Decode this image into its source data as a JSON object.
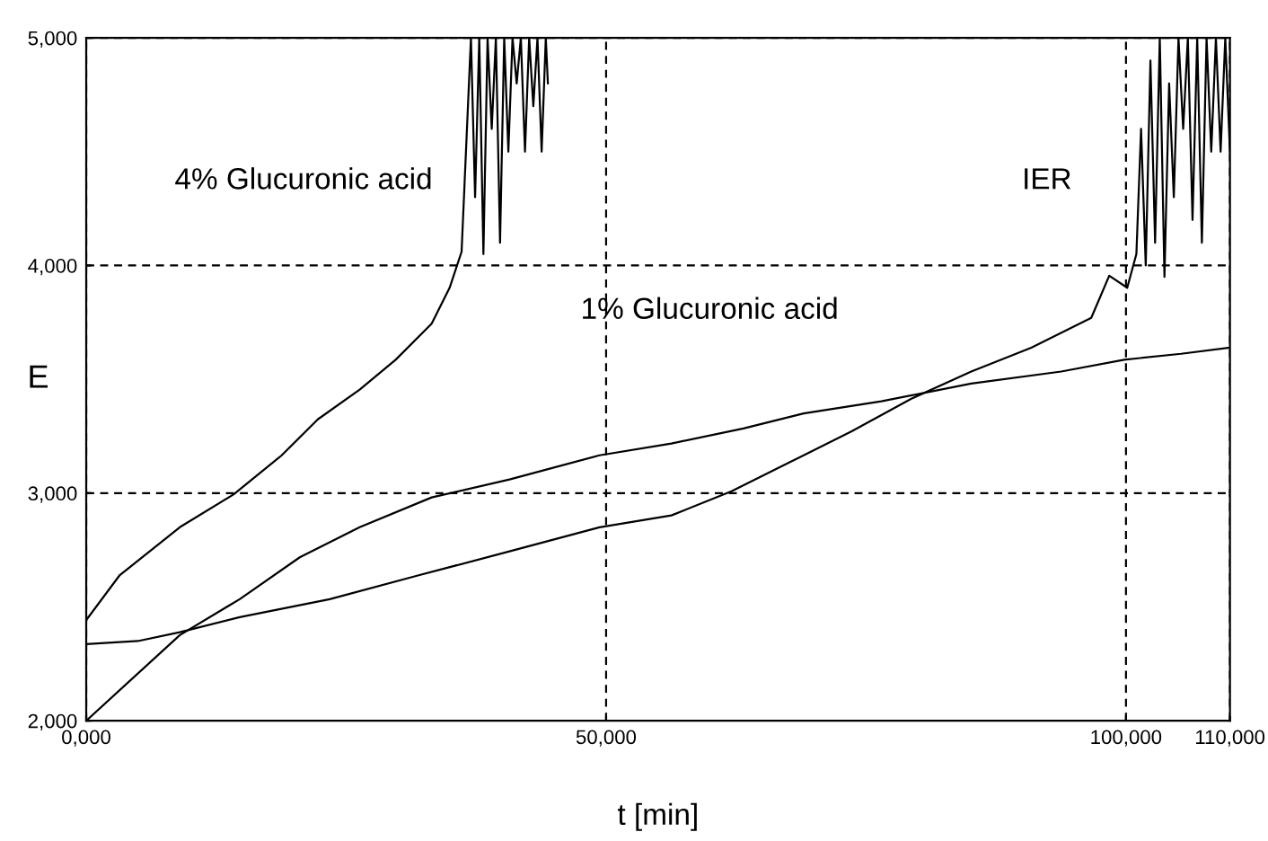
{
  "chart_data": {
    "type": "line",
    "xlabel": "t [min]",
    "ylabel": "E",
    "xlim": [
      0,
      110000
    ],
    "ylim": [
      2000,
      5000
    ],
    "xticks": [
      {
        "value": 0,
        "label": "0,000"
      },
      {
        "value": 50000,
        "label": "50,000"
      },
      {
        "value": 100000,
        "label": "100,000"
      },
      {
        "value": 110000,
        "label": "110,000"
      }
    ],
    "yticks": [
      {
        "value": 2000,
        "label": "2,000"
      },
      {
        "value": 3000,
        "label": "3,000"
      },
      {
        "value": 4000,
        "label": "4,000"
      },
      {
        "value": 5000,
        "label": "5,000"
      }
    ],
    "grid": true,
    "line_style": "solid",
    "marker": "none",
    "series": [
      {
        "color": "#000000",
        "x": [
          0,
          3230,
          9000,
          14190,
          18800,
          22270,
          26300,
          29760,
          33220,
          34950,
          36100,
          37000,
          37400,
          37800,
          38200,
          38600,
          39000,
          39400,
          39800,
          40200,
          40600,
          41000,
          41400,
          41800,
          42200,
          42600,
          43000,
          43400,
          43800,
          44200,
          44400
        ],
        "values": [
          2442,
          2640,
          2850,
          2995,
          3166,
          3324,
          3455,
          3586,
          3744,
          3902,
          4060,
          5000,
          4300,
          5000,
          4050,
          5000,
          4600,
          5000,
          4100,
          5000,
          4500,
          5000,
          4800,
          5000,
          4500,
          5000,
          4700,
          5000,
          4500,
          5000,
          4800
        ]
      },
      {
        "color": "#000000",
        "x": [
          0,
          9000,
          14760,
          20540,
          26300,
          33220,
          40710,
          49360,
          56280,
          63200,
          69000,
          76470,
          85120,
          93770,
          99830,
          105300,
          109900
        ],
        "values": [
          2000,
          2376,
          2534,
          2718,
          2850,
          2981,
          3060,
          3166,
          3218,
          3284,
          3350,
          3403,
          3481,
          3534,
          3586,
          3612,
          3639
        ]
      },
      {
        "color": "#000000",
        "x": [
          0,
          4960,
          9000,
          14760,
          23420,
          32060,
          40710,
          49360,
          56280,
          62060,
          67820,
          73580,
          79360,
          85120,
          90890,
          96660,
          98390,
          100120,
          101000,
          101450,
          101900,
          102350,
          102800,
          103250,
          103700,
          104150,
          104600,
          105050,
          105500,
          105950,
          106400,
          106850,
          107300,
          107750,
          108200,
          108650,
          109100,
          109550,
          110000
        ],
        "values": [
          2337,
          2350,
          2389,
          2455,
          2534,
          2640,
          2744,
          2850,
          2902,
          3008,
          3139,
          3271,
          3415,
          3534,
          3639,
          3770,
          3955,
          3902,
          4050,
          4600,
          4000,
          4900,
          4100,
          5000,
          3950,
          4800,
          4300,
          5000,
          4600,
          5000,
          4200,
          5000,
          4100,
          5000,
          4500,
          5000,
          4500,
          5000,
          4500
        ]
      }
    ],
    "annotations": [
      "4% Glucuronic acid",
      "1% Glucuronic acid",
      "IER"
    ]
  }
}
